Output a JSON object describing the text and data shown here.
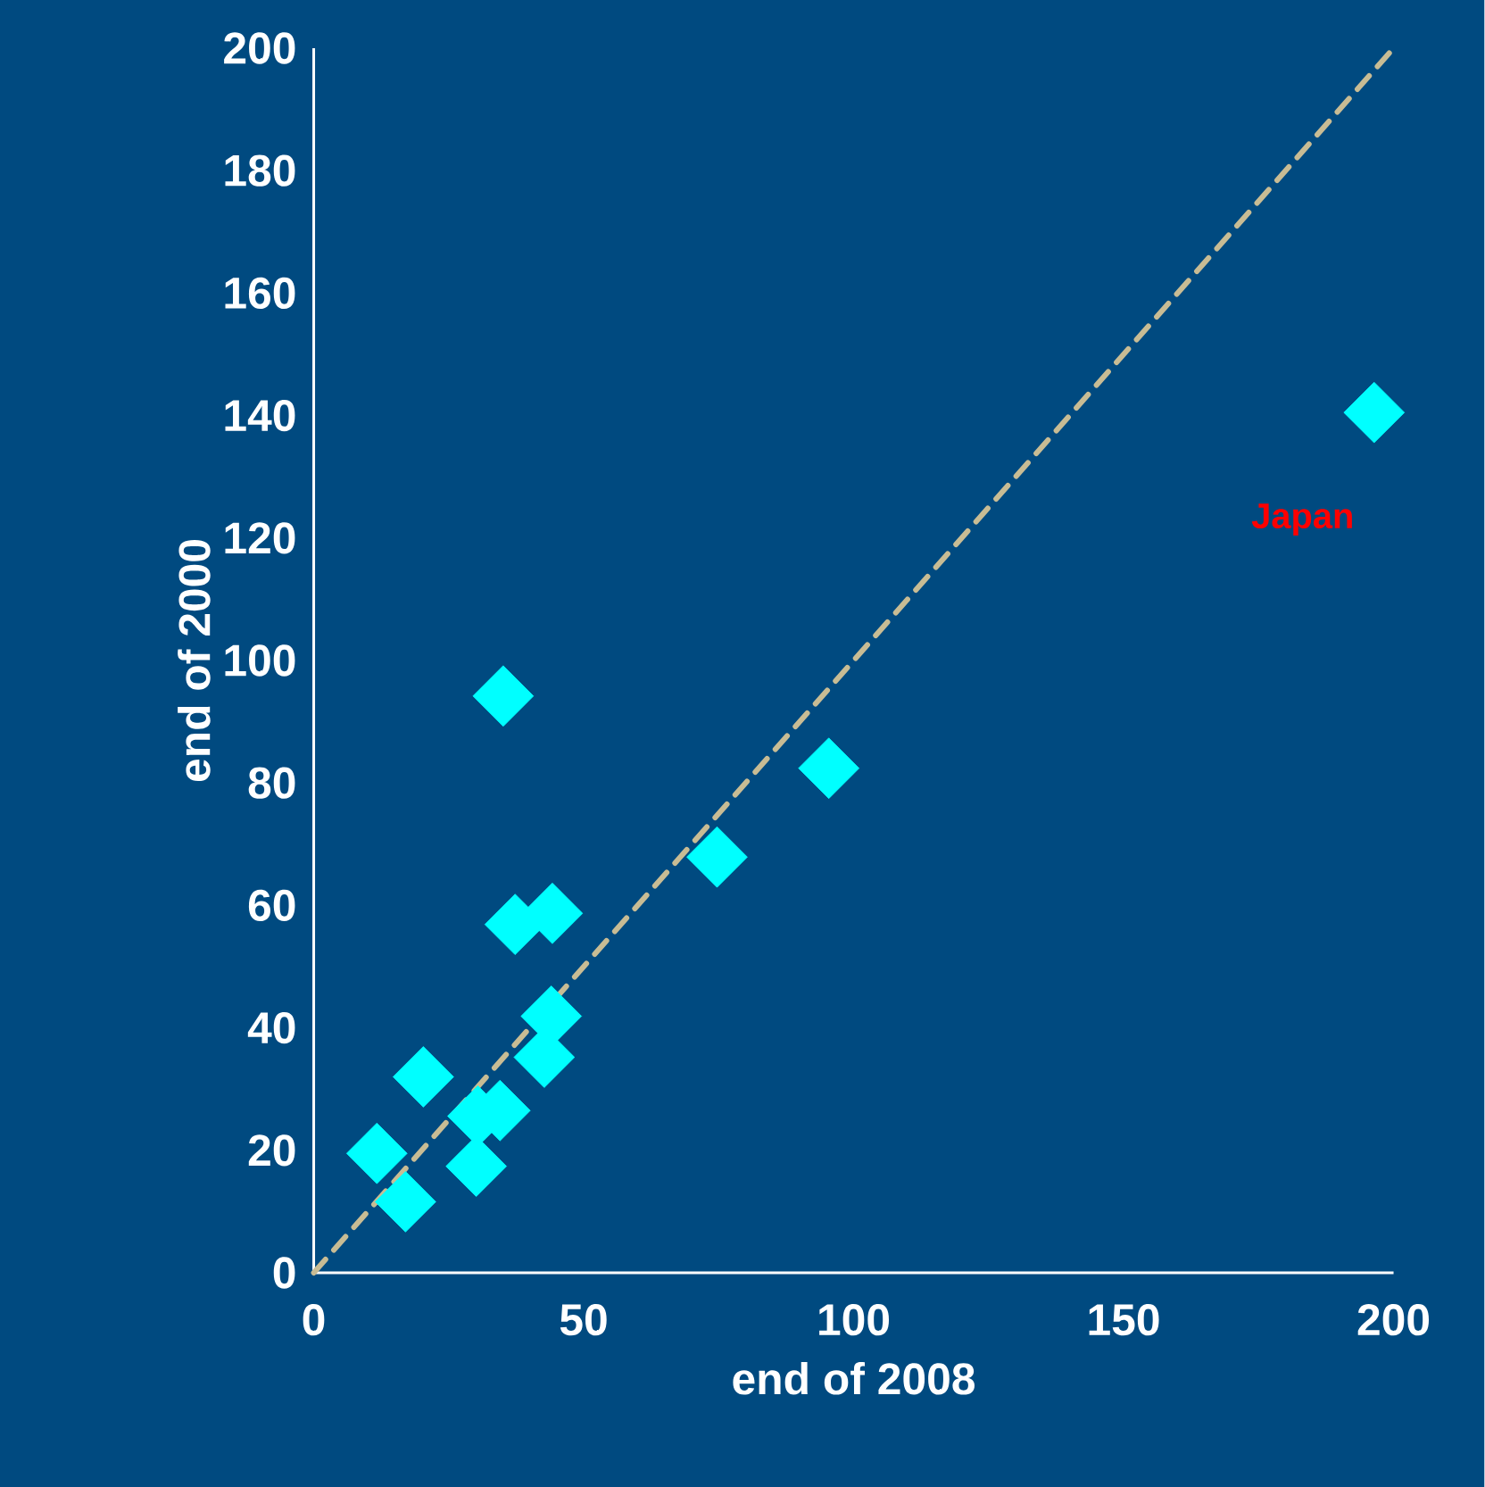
{
  "chart_data": {
    "type": "scatter",
    "xlabel": "end of 2008",
    "ylabel": "end of 2000",
    "xlim": [
      0,
      200
    ],
    "ylim": [
      0,
      200
    ],
    "xticks": [
      0,
      50,
      100,
      150,
      200
    ],
    "yticks": [
      0,
      20,
      40,
      60,
      80,
      100,
      120,
      140,
      160,
      180,
      200
    ],
    "marker": "diamond",
    "annotations": [
      {
        "text": "Japan",
        "x": 196.4,
        "y": 140.5
      }
    ],
    "series": [
      {
        "color": "#00ffff",
        "x": [
          35.1,
          95.4,
          74.7,
          37.3,
          44.2,
          44.0,
          42.7,
          20.3,
          34.5,
          30.4,
          11.7,
          30.1,
          17.0,
          196.4
        ],
        "values": [
          94.2,
          82.4,
          67.9,
          56.9,
          58.7,
          41.9,
          35.2,
          32.0,
          26.5,
          25.6,
          19.5,
          17.4,
          11.6,
          140.5
        ]
      },
      {
        "type": "line",
        "color": "#c8bc94",
        "line_style": "dashed",
        "marker": "none",
        "x": [
          0,
          200
        ],
        "values": [
          0,
          200
        ]
      }
    ]
  }
}
